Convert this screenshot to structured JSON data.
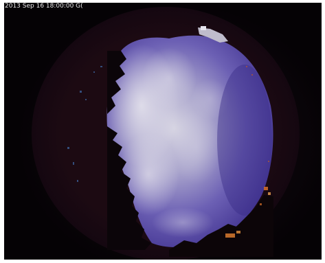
{
  "image": {
    "timestamp": "2013 Sep 16  18:00:00 G(",
    "colors": {
      "background": "#050205",
      "sky_center": "#c8c6d6",
      "sky_blue": "#5a4ea8",
      "sky_deep": "#3a2e8a",
      "tree_silhouette": "#0a0508",
      "city_lights": "#d8702a"
    }
  }
}
